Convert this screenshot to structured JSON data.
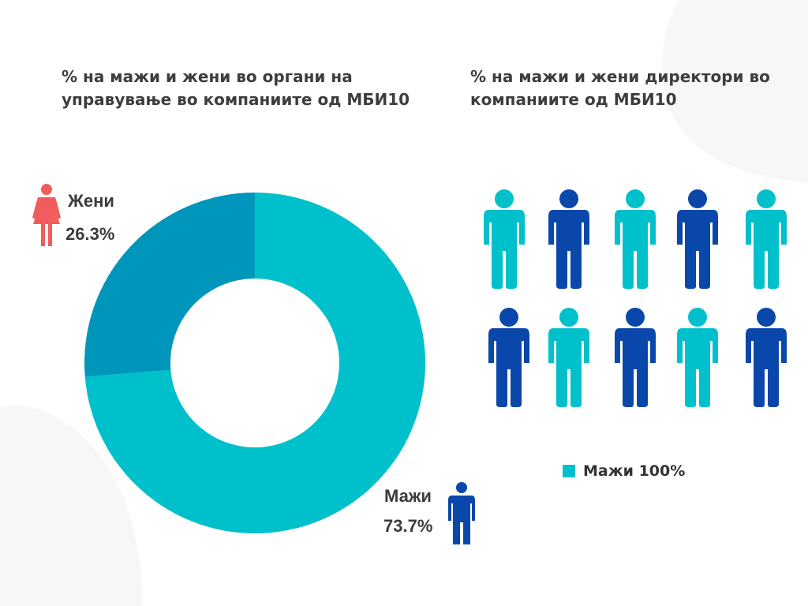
{
  "titles": {
    "left": "% на мажи и жени во органи на управување во компаниите од МБИ10",
    "right": "% на мажи и жени директори во компаниите од МБИ10"
  },
  "chart_data": [
    {
      "type": "pie",
      "title": "% на мажи и жени во органи на управување во компаниите од МБИ10",
      "labels": [
        "Мажи",
        "Жени"
      ],
      "values": [
        73.7,
        26.3
      ],
      "value_labels": [
        "73.7%",
        "26.3%"
      ],
      "colors": [
        "#00c0cc",
        "#0096bb"
      ],
      "donut": true
    },
    {
      "type": "pictograph",
      "title": "% на мажи и жени директори во компаниите од МБИ10",
      "icon": "man-icon",
      "count": 10,
      "rows": 2,
      "colors": [
        "#00c0cc",
        "#0a47aa"
      ],
      "legend": [
        "Мажи 100%"
      ],
      "values": [
        100
      ]
    }
  ],
  "labels": {
    "women_name": "Жени",
    "women_value": "26.3%",
    "men_name": "Мажи",
    "men_value": "73.7%"
  },
  "legend": {
    "label": "Мажи 100%",
    "color": "#00c0cc"
  },
  "colors": {
    "women_icon": "#f25c5c",
    "men_icon": "#0a47aa",
    "teal": "#00c0cc",
    "dark_teal": "#0096bb",
    "blue": "#0a47aa"
  }
}
